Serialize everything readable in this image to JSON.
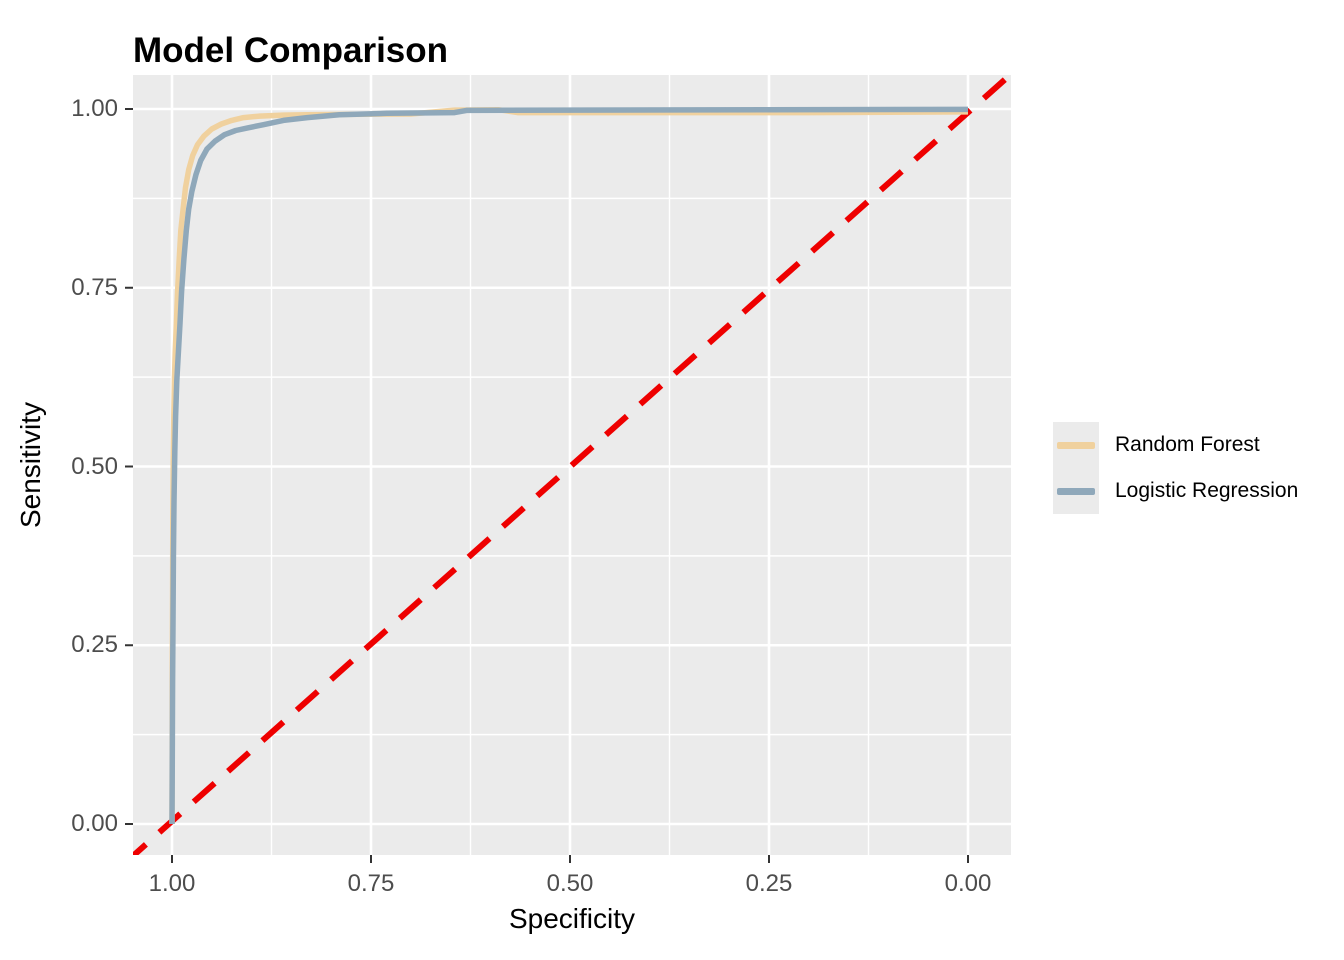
{
  "title": "Model Comparison",
  "axes": {
    "x": {
      "label": "Specificity",
      "reversed": true,
      "ticks": [
        {
          "label": "1.00",
          "value": 1.0
        },
        {
          "label": "0.75",
          "value": 0.75
        },
        {
          "label": "0.50",
          "value": 0.5
        },
        {
          "label": "0.25",
          "value": 0.25
        },
        {
          "label": "0.00",
          "value": 0.0
        }
      ],
      "minor_ticks": [
        0.875,
        0.625,
        0.375,
        0.125
      ]
    },
    "y": {
      "label": "Sensitivity",
      "ticks": [
        {
          "label": "1.00",
          "value": 1.0
        },
        {
          "label": "0.75",
          "value": 0.75
        },
        {
          "label": "0.50",
          "value": 0.5
        },
        {
          "label": "0.25",
          "value": 0.25
        },
        {
          "label": "0.00",
          "value": 0.0
        }
      ],
      "minor_ticks": [
        0.875,
        0.625,
        0.375,
        0.125
      ]
    }
  },
  "legend": {
    "items": [
      {
        "label": "Random Forest",
        "color": "#F0D19E"
      },
      {
        "label": "Logistic Regression",
        "color": "#8FA8BA"
      }
    ]
  },
  "colors": {
    "panel_background": "#EBEBEB",
    "gridline": "#FFFFFF",
    "tick_mark": "#333333",
    "tick_label": "#4D4D4D",
    "text": "#000000",
    "diagonal": "#EE0000",
    "random_forest": "#F0D19E",
    "logistic_regression": "#8FA8BA"
  },
  "chart_data": {
    "type": "line",
    "title": "Model Comparison",
    "xlabel": "Specificity",
    "ylabel": "Sensitivity",
    "x_reversed": true,
    "xlim": [
      1.05,
      -0.05
    ],
    "ylim": [
      -0.05,
      1.05
    ],
    "grid": true,
    "legend_position": "right",
    "series": [
      {
        "name": "Random Forest",
        "color": "#F0D19E",
        "style": "solid",
        "points": [
          [
            1.0,
            0.0
          ],
          [
            0.9998,
            0.1
          ],
          [
            0.9996,
            0.22
          ],
          [
            0.9993,
            0.33
          ],
          [
            0.999,
            0.42
          ],
          [
            0.9985,
            0.5
          ],
          [
            0.9978,
            0.57
          ],
          [
            0.997,
            0.62
          ],
          [
            0.996,
            0.66
          ],
          [
            0.9945,
            0.7
          ],
          [
            0.993,
            0.745
          ],
          [
            0.991,
            0.79
          ],
          [
            0.989,
            0.83
          ],
          [
            0.986,
            0.86
          ],
          [
            0.983,
            0.89
          ],
          [
            0.979,
            0.915
          ],
          [
            0.974,
            0.935
          ],
          [
            0.968,
            0.95
          ],
          [
            0.96,
            0.962
          ],
          [
            0.95,
            0.972
          ],
          [
            0.938,
            0.979
          ],
          [
            0.925,
            0.984
          ],
          [
            0.91,
            0.988
          ],
          [
            0.89,
            0.99
          ],
          [
            0.86,
            0.9915
          ],
          [
            0.83,
            0.992
          ],
          [
            0.78,
            0.9925
          ],
          [
            0.7,
            0.993
          ],
          [
            0.645,
            0.9985
          ],
          [
            0.59,
            0.999
          ],
          [
            0.565,
            0.995
          ],
          [
            0.4,
            0.995
          ],
          [
            0.2,
            0.995
          ],
          [
            0.0,
            0.996
          ]
        ]
      },
      {
        "name": "Logistic Regression",
        "color": "#8FA8BA",
        "style": "solid",
        "points": [
          [
            1.0,
            0.0
          ],
          [
            0.9998,
            0.06
          ],
          [
            0.9995,
            0.13
          ],
          [
            0.9992,
            0.2
          ],
          [
            0.9988,
            0.28
          ],
          [
            0.9982,
            0.37
          ],
          [
            0.9975,
            0.45
          ],
          [
            0.9965,
            0.52
          ],
          [
            0.9955,
            0.57
          ],
          [
            0.994,
            0.62
          ],
          [
            0.992,
            0.66
          ],
          [
            0.99,
            0.7
          ],
          [
            0.988,
            0.745
          ],
          [
            0.985,
            0.79
          ],
          [
            0.982,
            0.83
          ],
          [
            0.979,
            0.86
          ],
          [
            0.975,
            0.885
          ],
          [
            0.97,
            0.908
          ],
          [
            0.964,
            0.928
          ],
          [
            0.956,
            0.944
          ],
          [
            0.946,
            0.955
          ],
          [
            0.934,
            0.964
          ],
          [
            0.92,
            0.97
          ],
          [
            0.905,
            0.9735
          ],
          [
            0.885,
            0.978
          ],
          [
            0.86,
            0.984
          ],
          [
            0.83,
            0.988
          ],
          [
            0.79,
            0.992
          ],
          [
            0.73,
            0.994
          ],
          [
            0.645,
            0.995
          ],
          [
            0.63,
            0.998
          ],
          [
            0.5,
            0.9985
          ],
          [
            0.25,
            0.999
          ],
          [
            0.0,
            0.9995
          ]
        ]
      },
      {
        "name": "Chance diagonal",
        "color": "#EE0000",
        "style": "dashed",
        "role": "diagonal",
        "points": [
          [
            1.0,
            0.0
          ],
          [
            0.0,
            1.0
          ]
        ]
      }
    ]
  }
}
